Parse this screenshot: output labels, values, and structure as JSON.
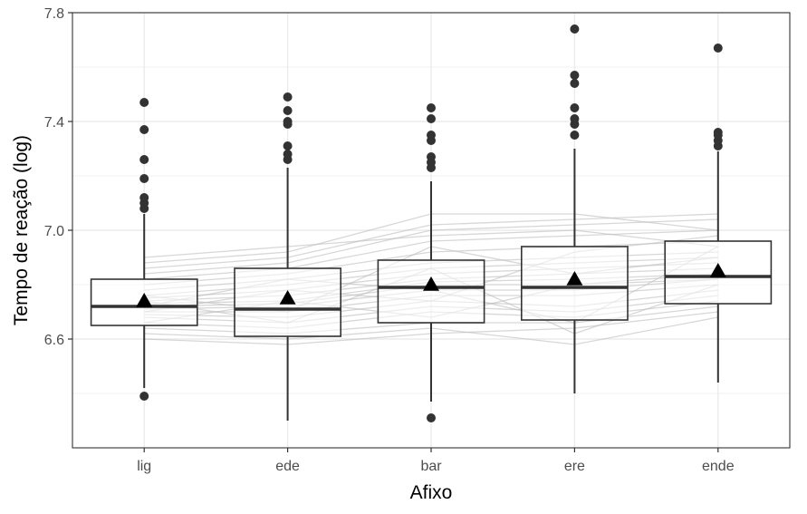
{
  "chart_data": {
    "type": "boxplot",
    "title": "",
    "xlabel": "Afixo",
    "ylabel": "Tempo de reação (log)",
    "ylim": [
      6.2,
      7.8
    ],
    "y_ticks": [
      6.6,
      7.0,
      7.4,
      7.8
    ],
    "y_tick_labels": [
      "6.6",
      "7.0",
      "7.4",
      "7.8"
    ],
    "y_minor_gridlines": [
      6.4,
      6.8,
      7.2,
      7.6
    ],
    "grid": true,
    "legend": "none",
    "categories": [
      "lig",
      "ede",
      "bar",
      "ere",
      "ende"
    ],
    "boxes": [
      {
        "category": "lig",
        "whisker_low": 6.42,
        "q1": 6.65,
        "median": 6.72,
        "q3": 6.82,
        "whisker_high": 7.06,
        "mean": 6.74,
        "outliers": [
          6.39,
          7.08,
          7.1,
          7.12,
          7.19,
          7.26,
          7.37,
          7.47
        ]
      },
      {
        "category": "ede",
        "whisker_low": 6.3,
        "q1": 6.61,
        "median": 6.71,
        "q3": 6.86,
        "whisker_high": 7.23,
        "mean": 6.75,
        "outliers": [
          7.26,
          7.28,
          7.31,
          7.39,
          7.4,
          7.44,
          7.49
        ]
      },
      {
        "category": "bar",
        "whisker_low": 6.37,
        "q1": 6.66,
        "median": 6.79,
        "q3": 6.89,
        "whisker_high": 7.18,
        "mean": 6.8,
        "outliers": [
          6.31,
          7.23,
          7.25,
          7.27,
          7.33,
          7.35,
          7.41,
          7.45
        ]
      },
      {
        "category": "ere",
        "whisker_low": 6.4,
        "q1": 6.67,
        "median": 6.79,
        "q3": 6.94,
        "whisker_high": 7.3,
        "mean": 6.82,
        "outliers": [
          7.35,
          7.39,
          7.41,
          7.45,
          7.54,
          7.57,
          7.74
        ]
      },
      {
        "category": "ende",
        "whisker_low": 6.44,
        "q1": 6.73,
        "median": 6.83,
        "q3": 6.96,
        "whisker_high": 7.29,
        "mean": 6.85,
        "outliers": [
          7.31,
          7.33,
          7.35,
          7.36,
          7.67
        ]
      }
    ],
    "participant_lines": [
      [
        6.6,
        6.58,
        6.62,
        6.64,
        6.7
      ],
      [
        6.62,
        6.6,
        6.64,
        6.58,
        6.68
      ],
      [
        6.64,
        6.62,
        6.66,
        6.66,
        6.72
      ],
      [
        6.66,
        6.64,
        6.7,
        6.68,
        6.74
      ],
      [
        6.68,
        6.66,
        6.72,
        6.7,
        6.76
      ],
      [
        6.69,
        6.68,
        6.74,
        6.72,
        6.78
      ],
      [
        6.7,
        6.7,
        6.76,
        6.76,
        6.8
      ],
      [
        6.71,
        6.72,
        6.78,
        6.78,
        6.82
      ],
      [
        6.72,
        6.73,
        6.8,
        6.8,
        6.82
      ],
      [
        6.73,
        6.74,
        6.81,
        6.82,
        6.84
      ],
      [
        6.74,
        6.76,
        6.82,
        6.84,
        6.86
      ],
      [
        6.75,
        6.78,
        6.84,
        6.86,
        6.88
      ],
      [
        6.76,
        6.8,
        6.86,
        6.88,
        6.9
      ],
      [
        6.78,
        6.82,
        6.88,
        6.9,
        6.92
      ],
      [
        6.8,
        6.84,
        6.92,
        6.94,
        6.96
      ],
      [
        6.82,
        6.86,
        6.96,
        6.98,
        7.0
      ],
      [
        6.84,
        6.88,
        7.0,
        7.02,
        7.04
      ],
      [
        6.86,
        6.9,
        7.02,
        7.04,
        7.06
      ],
      [
        6.88,
        6.92,
        7.06,
        7.06,
        7.0
      ],
      [
        6.9,
        6.94,
        6.98,
        7.0,
        6.94
      ],
      [
        6.76,
        6.7,
        6.94,
        6.84,
        6.9
      ],
      [
        6.7,
        6.78,
        6.74,
        6.92,
        6.98
      ],
      [
        6.74,
        6.66,
        6.86,
        6.62,
        6.8
      ],
      [
        6.66,
        6.74,
        6.68,
        6.8,
        6.84
      ],
      [
        6.72,
        6.82,
        6.78,
        6.66,
        6.94
      ]
    ]
  },
  "colors": {
    "panel_border": "#333333",
    "grid_major": "#ebebeb",
    "grid_minor": "#f2f2f2",
    "box_line": "#333333",
    "box_fill": "#ffffff",
    "points": "#333333",
    "participant_lines": "#bdbdbd",
    "mean_marker": "#000000"
  }
}
